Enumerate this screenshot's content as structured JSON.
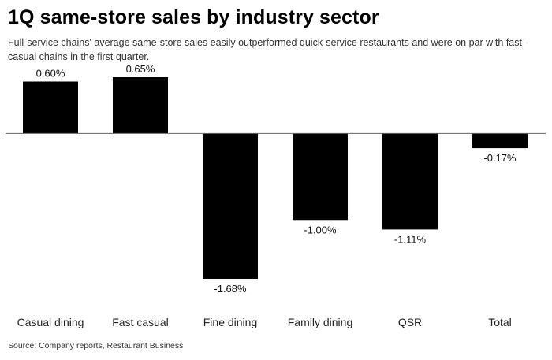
{
  "title": "1Q same-store sales by industry sector",
  "subtitle": "Full-service chains' average same-store sales easily outperformed quick-service restaurants and were on par with fast-casual chains in the first quarter.",
  "source": "Source: Company reports, Restaurant Business",
  "chart_data": {
    "type": "bar",
    "categories": [
      "Casual dining",
      "Fast casual",
      "Fine dining",
      "Family dining",
      "QSR",
      "Total"
    ],
    "values": [
      0.6,
      0.65,
      -1.68,
      -1.0,
      -1.11,
      -0.17
    ],
    "value_labels": [
      "0.60%",
      "0.65%",
      "-1.68%",
      "-1.00%",
      "-1.11%",
      "-0.17%"
    ],
    "ylim": [
      -1.68,
      0.65
    ],
    "grid": false,
    "legend": "none",
    "bar_color": "#000000"
  }
}
